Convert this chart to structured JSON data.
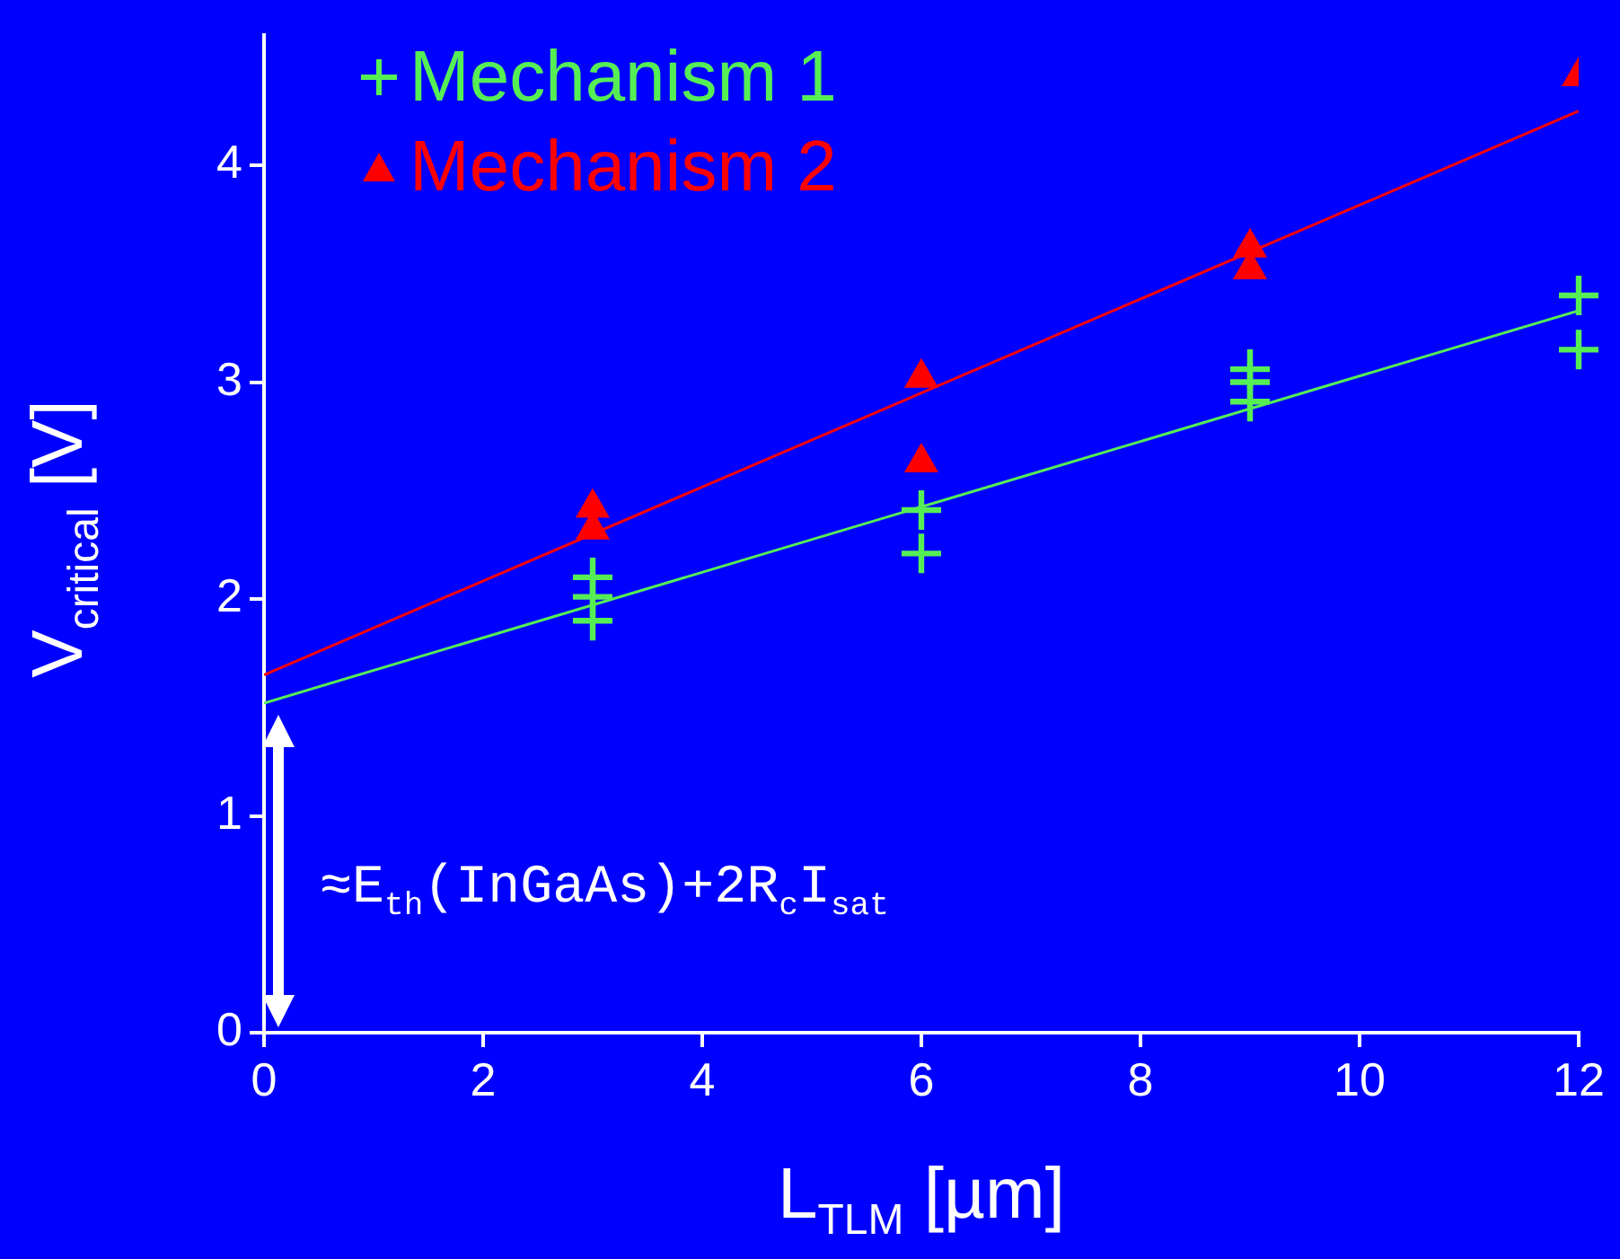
{
  "chart_data": {
    "type": "scatter",
    "xlabel": "L$_{TLM}$ [µm]",
    "ylabel": "V$_{critical}$ [V]",
    "xlim": [
      0,
      12
    ],
    "xticks": [
      0,
      2,
      4,
      6,
      8,
      10,
      12
    ],
    "ylim": [
      0,
      4.6
    ],
    "yticks": [
      0,
      1,
      2,
      3,
      4
    ],
    "legend": "top left",
    "grid": false,
    "annotations": [
      "≈E$_{th}$(InGaAs)+2R$_{c}$I$_{sat}$"
    ],
    "series": [
      {
        "name": "Mechanism 1",
        "color": "#55ee55",
        "marker": "cross",
        "x": [
          3,
          3,
          3,
          6,
          6,
          9,
          9,
          9,
          12,
          12
        ],
        "values": [
          2.1,
          2.01,
          1.9,
          2.41,
          2.21,
          3.06,
          3.0,
          2.91,
          3.4,
          3.15
        ]
      },
      {
        "name": "Mechanism 2",
        "color": "#ff0000",
        "marker": "triangle",
        "x": [
          3,
          3,
          6,
          6,
          9,
          9,
          12
        ],
        "values": [
          2.42,
          2.32,
          3.02,
          2.63,
          3.62,
          3.52,
          4.41
        ]
      },
      {
        "type": "line",
        "color": "#55ee55",
        "marker": "none",
        "x": [
          0,
          12
        ],
        "values": [
          1.52,
          3.33
        ]
      },
      {
        "type": "line",
        "color": "#ff0000",
        "marker": "none",
        "x": [
          0,
          12
        ],
        "values": [
          1.65,
          4.25
        ]
      }
    ]
  }
}
